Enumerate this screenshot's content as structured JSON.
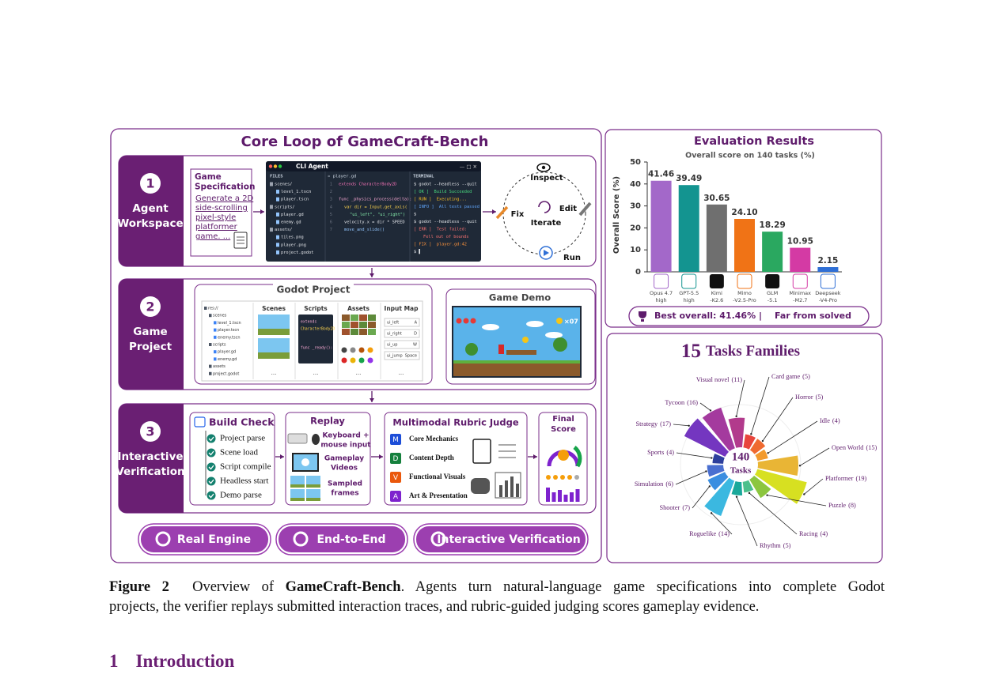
{
  "core_loop": {
    "title": "Core Loop of GameCraft-Bench",
    "steps": [
      {
        "number": "1",
        "label": [
          "Agent",
          "Workspace"
        ]
      },
      {
        "number": "2",
        "label": [
          "Game",
          "Project"
        ]
      },
      {
        "number": "3",
        "label": [
          "Interactive",
          "Verification"
        ]
      }
    ],
    "spec": {
      "title": [
        "Game",
        "Specification"
      ],
      "text": [
        "Generate a 2D",
        "side-scrolling",
        "pixel-style",
        "platformer",
        "game. ..."
      ]
    },
    "cli": {
      "title": "CLI Agent",
      "controls": "— □ ✕",
      "files_header": "FILES",
      "tab": "» player.gd",
      "terminal_header": "TERMINAL",
      "files": [
        "scenes/",
        "level_1.tscn",
        "player.tscn",
        "scripts/",
        "player.gd",
        "enemy.gd",
        "assets/",
        "tiles.png",
        "player.png",
        "project.godot"
      ],
      "line_numbers": [
        "1",
        "2",
        "3",
        "4",
        "5",
        "6",
        "7"
      ],
      "code": [
        "extends CharacterBody2D",
        "func _physics_process(delta):",
        "var dir = Input.get_axis(",
        "\"ui_left\", \"ui_right\")",
        "velocity.x = dir * SPEED",
        "move_and_slide()"
      ],
      "terminal": [
        "$ godot --headless --quit",
        "[ OK ]  Build Succeeded",
        "[ RUN ]  Executing...",
        "[ INFO ]  All tests passed",
        "$",
        "$ godot --headless --quit",
        "[ ERR ]  Test failed:",
        "Fell out of bounds",
        "[ FIX ]  player.gd:42",
        "$ ▌"
      ]
    },
    "loop": {
      "inspect": "Inspect",
      "edit": "Edit",
      "run": "Run",
      "fix": "Fix",
      "iterate": "Iterate"
    },
    "godot": {
      "title": "Godot Project",
      "tree": [
        "res://",
        "scenes",
        "level_1.tscn",
        "player.tscn",
        "enemy.tscn",
        "scripts",
        "player.gd",
        "enemy.gd",
        "assets",
        "project.godot"
      ],
      "columns": [
        "Scenes",
        "Scripts",
        "Assets",
        "Input Map"
      ],
      "script_lines": [
        "extends",
        "CharacterBody2D",
        "func _ready():"
      ],
      "inputs": [
        [
          "ui_left",
          "A"
        ],
        [
          "ui_right",
          "D"
        ],
        [
          "ui_up",
          "W"
        ],
        [
          "ui_jump",
          "Space"
        ]
      ],
      "ellipsis": "..."
    },
    "demo": {
      "title": "Game Demo",
      "coins": "×07"
    },
    "build_check": {
      "title": "Build Check",
      "items": [
        "Project parse",
        "Scene load",
        "Script compile",
        "Headless start",
        "Demo parse"
      ]
    },
    "replay": {
      "title": "Replay",
      "input": [
        "Keyboard +",
        "mouse input"
      ],
      "videos": [
        "Gameplay",
        "Videos"
      ],
      "frames": [
        "Sampled",
        "frames"
      ]
    },
    "judge": {
      "title": "Multimodal Rubric Judge",
      "criteria": [
        {
          "key": "M",
          "label": "Core Mechanics"
        },
        {
          "key": "D",
          "label": "Content Depth"
        },
        {
          "key": "V",
          "label": "Functional Visuals"
        },
        {
          "key": "A",
          "label": "Art & Presentation"
        }
      ]
    },
    "final": {
      "title": [
        "Final",
        "Score"
      ]
    },
    "badges": [
      "Real Engine",
      "End-to-End",
      "Interactive Verification"
    ]
  },
  "chart_data": [
    {
      "type": "bar",
      "title": "Evaluation Results",
      "subtitle": "Overall score on 140 tasks (%)",
      "y_label": "Overall Score (%)",
      "categories": [
        "Opus 4.7 high",
        "GPT-5.5 high",
        "Kimi -K2.6",
        "Mimo -V2.5-Pro",
        "GLM -5.1",
        "Minimax -M2.7",
        "Deepseek -V4-Pro"
      ],
      "values": [
        41.46,
        39.49,
        30.65,
        24.1,
        18.29,
        10.95,
        2.15
      ],
      "value_labels": [
        "41.46",
        "39.49",
        "30.65",
        "24.10",
        "18.29",
        "10.95",
        "2.15"
      ],
      "colors": [
        "#a368c9",
        "#139490",
        "#6f6f6f",
        "#f07316",
        "#2aa860",
        "#d43aa4",
        "#2f6fd6"
      ],
      "ylim": [
        0,
        50
      ],
      "yticks": [
        0,
        10,
        20,
        30,
        40,
        50
      ],
      "footer": {
        "best": "Best overall: 41.46%",
        "separator": "|",
        "note": "Far from solved"
      }
    },
    {
      "type": "radial-bar",
      "title": {
        "count": "15",
        "text": "Tasks Families"
      },
      "total": 140,
      "total_label": "Tasks",
      "categories": [
        "Visual novel",
        "Card game",
        "Horror",
        "Idle",
        "Open World",
        "Platformer",
        "Puzzle",
        "Racing",
        "Rhythm",
        "Roguelike",
        "Shooter",
        "Simulation",
        "Sports",
        "Strategy",
        "Tycoon"
      ],
      "values": [
        11,
        5,
        5,
        4,
        15,
        19,
        8,
        4,
        5,
        14,
        7,
        6,
        4,
        17,
        16
      ],
      "value_labels": [
        "(11)",
        "(5)",
        "(5)",
        "(4)",
        "(15)",
        "(19)",
        "(8)",
        "(4)",
        "(5)",
        "(14)",
        "(7)",
        "(6)",
        "(4)",
        "(17)",
        "(16)"
      ],
      "colors": [
        "#b23a8c",
        "#e8453c",
        "#ef6a30",
        "#f29a2e",
        "#e9b535",
        "#d7e021",
        "#8cc63f",
        "#4cc08c",
        "#1aa89a",
        "#3bb8e0",
        "#3a8ee0",
        "#4a6fd0",
        "#2d3f9c",
        "#7436c0",
        "#a43a9e"
      ]
    }
  ],
  "caption": {
    "label": "Figure 2",
    "lines": [
      [
        "Overview of ",
        "GameCraft-Bench",
        ". Agents turn natural-language game specifications into complete Godot"
      ],
      [
        "projects, the verifier replays submitted interaction traces, and rubric-guided judging scores gameplay evidence."
      ]
    ]
  },
  "section": {
    "number": "1",
    "title": "Introduction"
  }
}
